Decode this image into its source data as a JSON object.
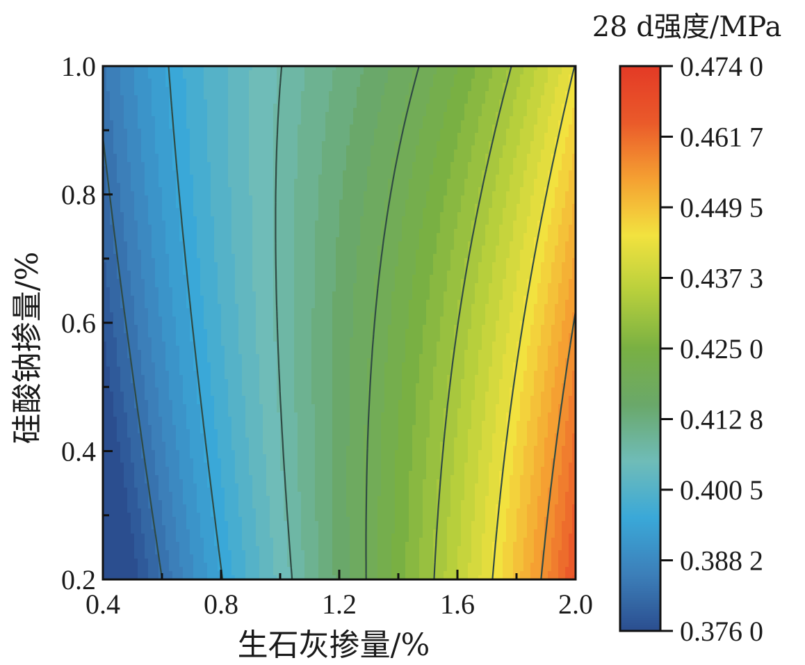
{
  "chart_data": {
    "type": "heatmap",
    "subtype": "contour",
    "xlabel": "生石灰掺量/%",
    "ylabel": "硅酸钠掺量/%",
    "xlim": [
      0.4,
      2.0
    ],
    "ylim": [
      0.2,
      1.0
    ],
    "x_ticks": [
      "0.4",
      "0.8",
      "1.2",
      "1.6",
      "2.0"
    ],
    "y_ticks": [
      "0.2",
      "0.4",
      "0.6",
      "0.8",
      "1.0"
    ],
    "colorbar": {
      "title": "28 d强度/MPa",
      "range": [
        0.376,
        0.474
      ],
      "tick_labels": [
        "0.474 0",
        "0.461 7",
        "0.449 5",
        "0.437 3",
        "0.425 0",
        "0.412 8",
        "0.400 5",
        "0.388 2",
        "0.376 0"
      ],
      "colors": [
        "#2b4e8f",
        "#3c7fb9",
        "#3aa8d8",
        "#6fbcb8",
        "#6aa86a",
        "#79b043",
        "#b7cf3c",
        "#f2e23f",
        "#f5a032",
        "#ea5a2a",
        "#e33a26"
      ]
    },
    "contour_levels": [
      0.3825,
      0.3948,
      0.407,
      0.4193,
      0.4315,
      0.4438,
      0.456,
      0.4683
    ],
    "surface_model": "strength = 0.4148 + 0.0296*(x-1.2)/0.8 - 0.00145*(y-0.6)/0.4 + 0.00215*((x-1.2)/0.8)^2 - 0.00145*((y-0.6)/0.4)^2 + 0.00995*((x-1.2)/0.8)^3 - 0.00955*((x-1.2)/0.8)*((y-0.6)/0.4)"
  }
}
